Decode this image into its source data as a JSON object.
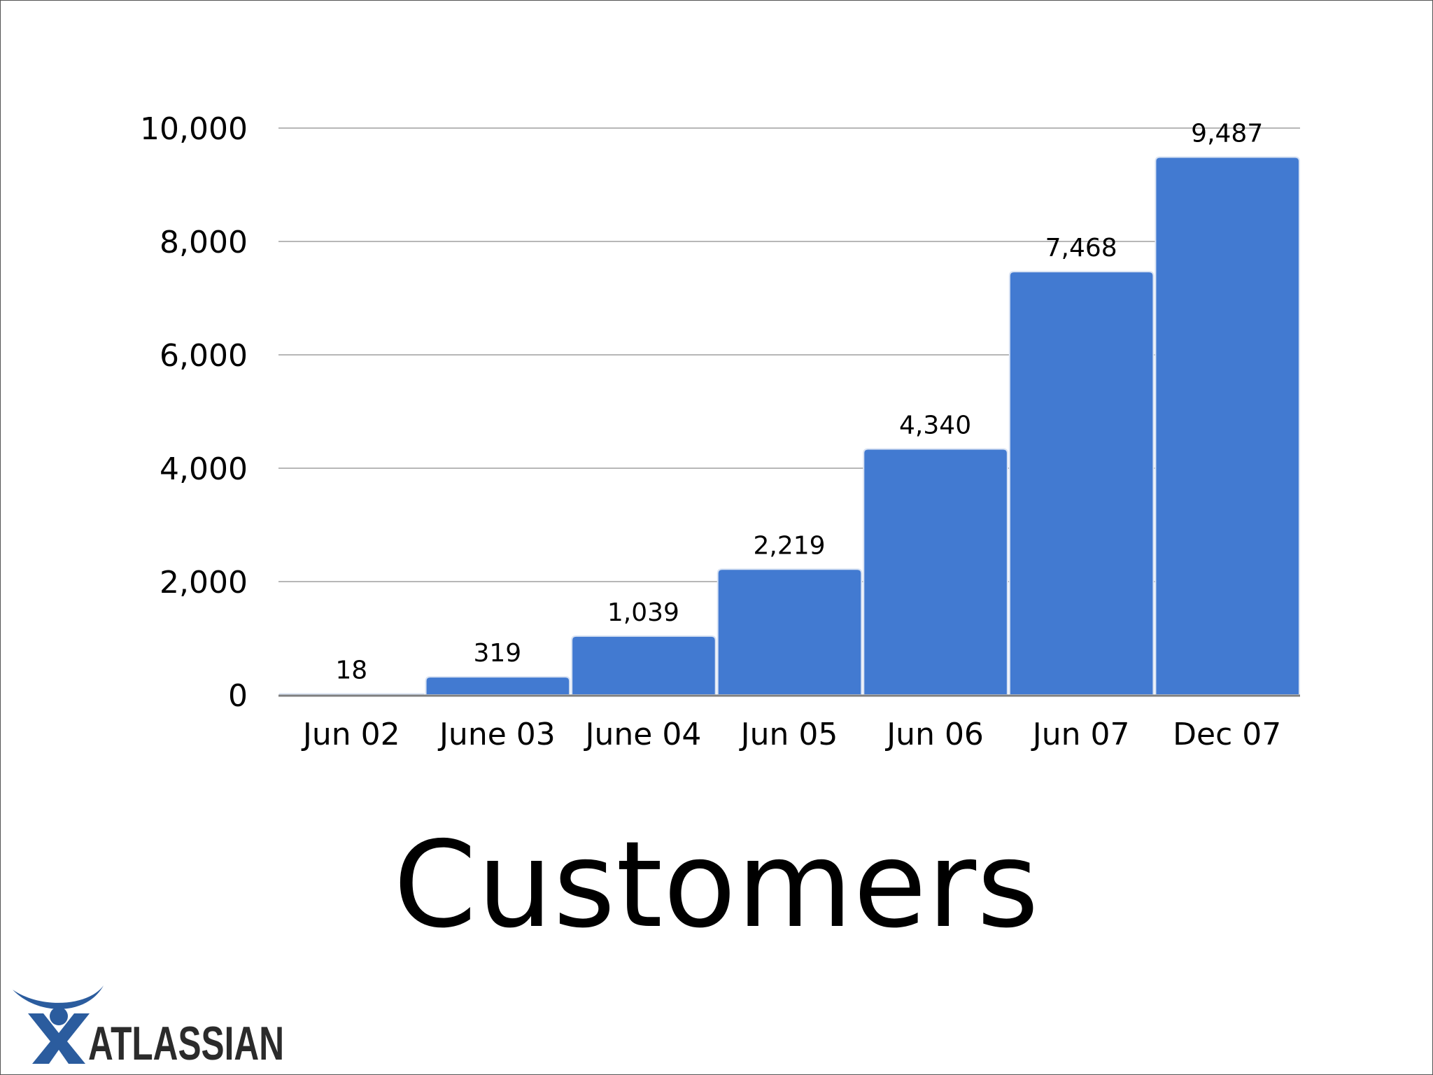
{
  "colors": {
    "bar": "#427ad1",
    "bar_edge": "#d9e3f3",
    "grid": "#b7b7b7",
    "axis": "#7f7f7f",
    "logo_arc": "#2b5c9e",
    "logo_text": "#2b2b2b"
  },
  "slide": {
    "title": "Customers"
  },
  "logo": {
    "brand": "ATLASSIAN",
    "icon": "atlassian-logo-icon"
  },
  "chart_data": {
    "type": "bar",
    "categories": [
      "Jun 02",
      "June 03",
      "June 04",
      "Jun 05",
      "Jun 06",
      "Jun 07",
      "Dec 07"
    ],
    "values": [
      18,
      319,
      1039,
      2219,
      4340,
      7468,
      9487
    ],
    "value_labels": [
      "18",
      "319",
      "1,039",
      "2,219",
      "4,340",
      "7,468",
      "9,487"
    ],
    "title": "",
    "xlabel": "",
    "ylabel": "",
    "ylim": [
      0,
      10000
    ],
    "y_ticks": [
      0,
      2000,
      4000,
      6000,
      8000,
      10000
    ],
    "y_tick_labels": [
      "0",
      "2,000",
      "4,000",
      "6,000",
      "8,000",
      "10,000"
    ],
    "grid": true,
    "legend": "none"
  }
}
